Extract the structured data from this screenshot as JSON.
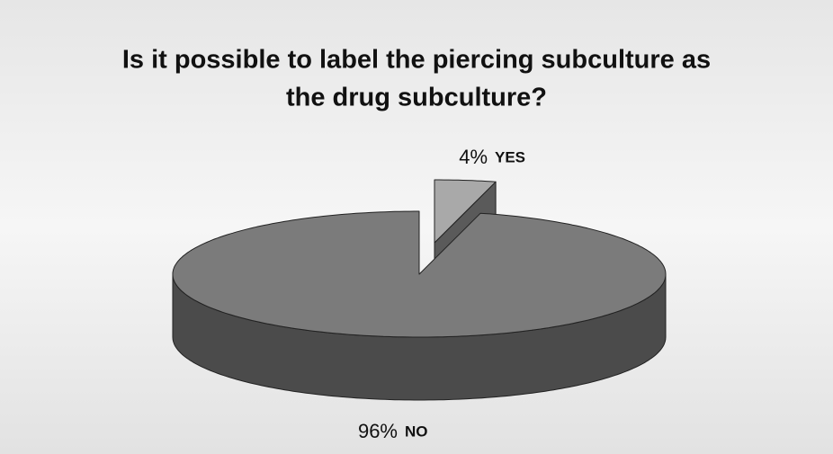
{
  "chart_data": {
    "type": "pie",
    "title_lines": [
      "Is it possible to label the piercing subculture as",
      "the drug subculture?"
    ],
    "categories": [
      "YES",
      "NO"
    ],
    "values": [
      4,
      96
    ],
    "value_labels": [
      "4%",
      "96%"
    ],
    "colors": [
      "#a9a9a9",
      "#7b7b7b"
    ],
    "three_d": true
  }
}
